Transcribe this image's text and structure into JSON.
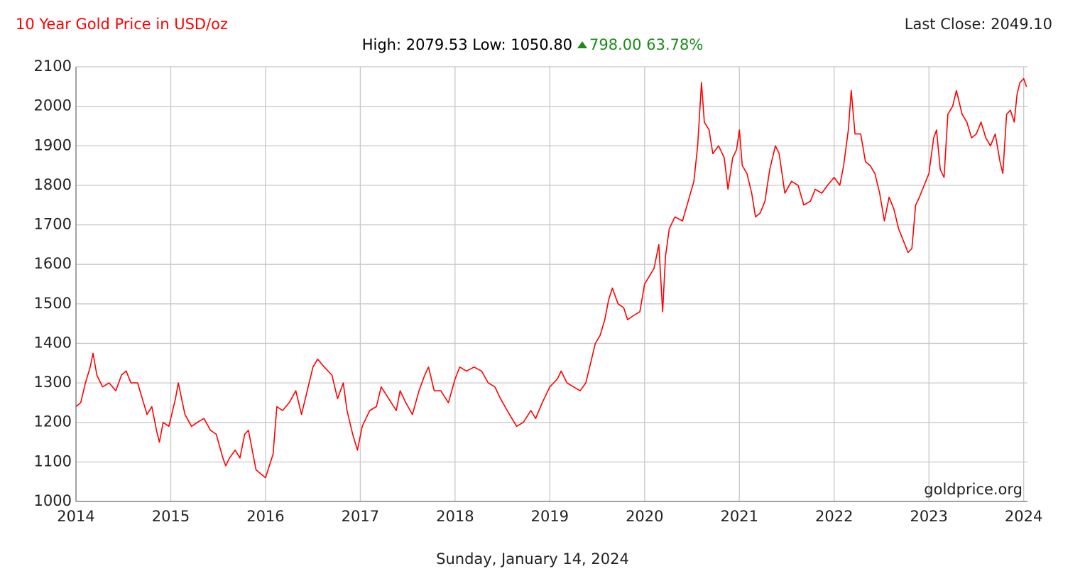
{
  "chart_data": {
    "type": "line",
    "title": "10 Year Gold Price in USD/oz",
    "last_close": "Last Close: 2049.10",
    "high_low": "High: 2079.53 Low: 1050.80",
    "change": "798.00 63.78%",
    "watermark": "goldprice.org",
    "date": "Sunday, January 14, 2024",
    "x": [
      2014.0,
      2014.05,
      2014.1,
      2014.15,
      2014.18,
      2014.22,
      2014.28,
      2014.35,
      2014.42,
      2014.48,
      2014.53,
      2014.58,
      2014.65,
      2014.7,
      2014.75,
      2014.8,
      2014.85,
      2014.88,
      2014.92,
      2014.98,
      2015.05,
      2015.08,
      2015.15,
      2015.22,
      2015.28,
      2015.35,
      2015.42,
      2015.48,
      2015.55,
      2015.58,
      2015.62,
      2015.68,
      2015.73,
      2015.78,
      2015.82,
      2015.86,
      2015.9,
      2015.95,
      2016.0,
      2016.04,
      2016.08,
      2016.12,
      2016.18,
      2016.25,
      2016.32,
      2016.38,
      2016.45,
      2016.5,
      2016.55,
      2016.62,
      2016.7,
      2016.76,
      2016.82,
      2016.86,
      2016.92,
      2016.97,
      2017.02,
      2017.1,
      2017.17,
      2017.22,
      2017.3,
      2017.38,
      2017.42,
      2017.48,
      2017.55,
      2017.62,
      2017.68,
      2017.72,
      2017.78,
      2017.85,
      2017.93,
      2018.0,
      2018.05,
      2018.12,
      2018.2,
      2018.28,
      2018.35,
      2018.42,
      2018.48,
      2018.55,
      2018.6,
      2018.65,
      2018.72,
      2018.8,
      2018.85,
      2018.92,
      2019.0,
      2019.08,
      2019.12,
      2019.18,
      2019.25,
      2019.32,
      2019.38,
      2019.42,
      2019.48,
      2019.53,
      2019.58,
      2019.62,
      2019.66,
      2019.72,
      2019.78,
      2019.82,
      2019.88,
      2019.95,
      2020.0,
      2020.05,
      2020.1,
      2020.15,
      2020.19,
      2020.22,
      2020.26,
      2020.32,
      2020.4,
      2020.46,
      2020.52,
      2020.56,
      2020.6,
      2020.63,
      2020.68,
      2020.72,
      2020.78,
      2020.84,
      2020.88,
      2020.93,
      2020.97,
      2021.0,
      2021.03,
      2021.08,
      2021.13,
      2021.17,
      2021.22,
      2021.27,
      2021.32,
      2021.38,
      2021.42,
      2021.48,
      2021.55,
      2021.62,
      2021.68,
      2021.75,
      2021.8,
      2021.87,
      2021.93,
      2022.0,
      2022.06,
      2022.1,
      2022.15,
      2022.18,
      2022.22,
      2022.28,
      2022.33,
      2022.38,
      2022.43,
      2022.48,
      2022.53,
      2022.58,
      2022.63,
      2022.68,
      2022.73,
      2022.78,
      2022.82,
      2022.86,
      2022.9,
      2022.95,
      2023.0,
      2023.05,
      2023.08,
      2023.12,
      2023.16,
      2023.2,
      2023.25,
      2023.29,
      2023.35,
      2023.4,
      2023.45,
      2023.5,
      2023.55,
      2023.6,
      2023.65,
      2023.7,
      2023.75,
      2023.78,
      2023.82,
      2023.86,
      2023.9,
      2023.93,
      2023.96,
      2024.0,
      2024.03
    ],
    "series": [
      {
        "name": "Gold Price",
        "color": "#ff0000",
        "values": [
          1240,
          1250,
          1300,
          1340,
          1375,
          1320,
          1290,
          1300,
          1280,
          1320,
          1330,
          1300,
          1300,
          1260,
          1220,
          1240,
          1180,
          1150,
          1200,
          1190,
          1260,
          1300,
          1220,
          1190,
          1200,
          1210,
          1180,
          1170,
          1110,
          1090,
          1110,
          1130,
          1110,
          1170,
          1180,
          1130,
          1080,
          1070,
          1060,
          1090,
          1120,
          1240,
          1230,
          1250,
          1280,
          1220,
          1290,
          1340,
          1360,
          1340,
          1320,
          1260,
          1300,
          1230,
          1170,
          1130,
          1190,
          1230,
          1240,
          1290,
          1260,
          1230,
          1280,
          1250,
          1220,
          1280,
          1320,
          1340,
          1280,
          1280,
          1250,
          1310,
          1340,
          1330,
          1340,
          1330,
          1300,
          1290,
          1260,
          1230,
          1210,
          1190,
          1200,
          1230,
          1210,
          1250,
          1290,
          1310,
          1330,
          1300,
          1290,
          1280,
          1300,
          1340,
          1400,
          1420,
          1460,
          1510,
          1540,
          1500,
          1490,
          1460,
          1470,
          1480,
          1550,
          1570,
          1590,
          1650,
          1480,
          1620,
          1690,
          1720,
          1710,
          1760,
          1810,
          1900,
          2060,
          1960,
          1940,
          1880,
          1900,
          1870,
          1790,
          1870,
          1890,
          1940,
          1850,
          1830,
          1780,
          1720,
          1730,
          1760,
          1840,
          1900,
          1880,
          1780,
          1810,
          1800,
          1750,
          1760,
          1790,
          1780,
          1800,
          1820,
          1800,
          1850,
          1940,
          2040,
          1930,
          1930,
          1860,
          1850,
          1830,
          1780,
          1710,
          1770,
          1740,
          1690,
          1660,
          1630,
          1640,
          1750,
          1770,
          1800,
          1830,
          1920,
          1940,
          1840,
          1820,
          1980,
          2000,
          2040,
          1980,
          1960,
          1920,
          1930,
          1960,
          1920,
          1900,
          1930,
          1860,
          1830,
          1980,
          1990,
          1960,
          2030,
          2060,
          2070,
          2049.1
        ]
      }
    ],
    "xlim": [
      2014,
      2024.04
    ],
    "ylim": [
      1000,
      2100
    ],
    "xticks": [
      2014,
      2015,
      2016,
      2017,
      2018,
      2019,
      2020,
      2021,
      2022,
      2023,
      2024
    ],
    "yticks": [
      1000,
      1100,
      1200,
      1300,
      1400,
      1500,
      1600,
      1700,
      1800,
      1900,
      2000,
      2100
    ],
    "grid": true,
    "title_color": "#ff0000",
    "change_color": "#1a8c1a"
  }
}
